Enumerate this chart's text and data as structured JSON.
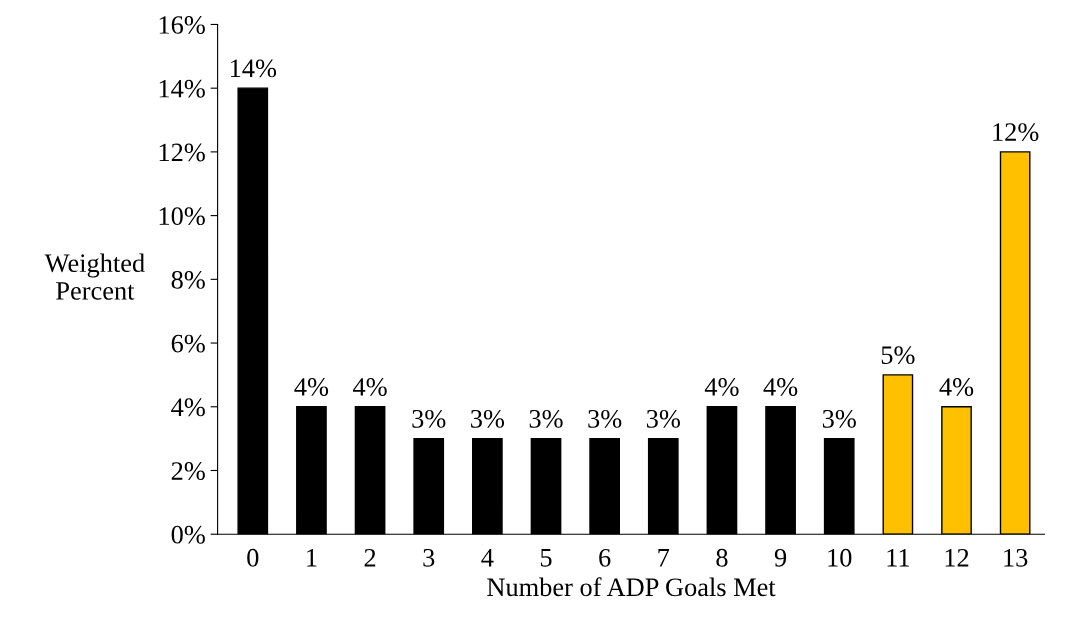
{
  "chart_data": {
    "type": "bar",
    "xlabel": "Number of ADP Goals Met",
    "ylabel": "Weighted\nPercent",
    "categories": [
      "0",
      "1",
      "2",
      "3",
      "4",
      "5",
      "6",
      "7",
      "8",
      "9",
      "10",
      "11",
      "12",
      "13"
    ],
    "values": [
      14,
      4,
      4,
      3,
      3,
      3,
      3,
      3,
      4,
      4,
      3,
      5,
      4,
      12
    ],
    "colors": [
      "#000000",
      "#000000",
      "#000000",
      "#000000",
      "#000000",
      "#000000",
      "#000000",
      "#000000",
      "#000000",
      "#000000",
      "#000000",
      "#ffc000",
      "#ffc000",
      "#ffc000"
    ],
    "value_labels": [
      "14%",
      "4%",
      "4%",
      "3%",
      "3%",
      "3%",
      "3%",
      "3%",
      "4%",
      "4%",
      "3%",
      "5%",
      "4%",
      "12%"
    ],
    "ylim": [
      0,
      16
    ],
    "yticks": [
      {
        "value": 0,
        "label": "0%"
      },
      {
        "value": 2,
        "label": "2%"
      },
      {
        "value": 4,
        "label": "4%"
      },
      {
        "value": 6,
        "label": "6%"
      },
      {
        "value": 8,
        "label": "8%"
      },
      {
        "value": 10,
        "label": "10%"
      },
      {
        "value": 12,
        "label": "12%"
      },
      {
        "value": 14,
        "label": "14%"
      },
      {
        "value": 16,
        "label": "16%"
      }
    ],
    "grid": false
  }
}
